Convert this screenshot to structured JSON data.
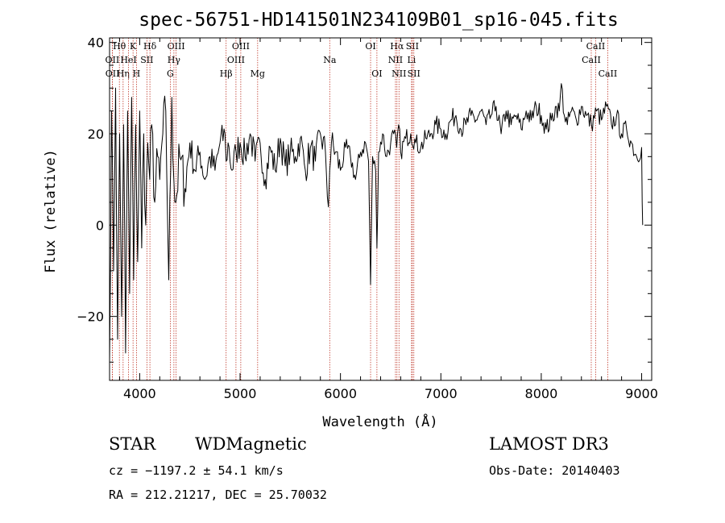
{
  "chart_data": {
    "type": "line",
    "title": "spec-56751-HD141501N234109B01_sp16-045.fits",
    "xlabel": "Wavelength (Å)",
    "ylabel": "Flux (relative)",
    "xlim": [
      3700,
      9100
    ],
    "ylim": [
      -34,
      41
    ],
    "xticks": [
      4000,
      5000,
      6000,
      7000,
      8000,
      9000
    ],
    "xtick_labels": [
      "4000",
      "5000",
      "6000",
      "7000",
      "8000",
      "9000"
    ],
    "yticks": [
      -20,
      0,
      20,
      40
    ],
    "ytick_labels": [
      "−20",
      "0",
      "20",
      "40"
    ],
    "grid": false,
    "series": [
      {
        "name": "flux",
        "x": [
          3700,
          3720,
          3740,
          3760,
          3780,
          3800,
          3820,
          3840,
          3860,
          3880,
          3900,
          3920,
          3940,
          3960,
          3980,
          4000,
          4020,
          4040,
          4060,
          4080,
          4100,
          4120,
          4150,
          4180,
          4200,
          4230,
          4260,
          4290,
          4320,
          4340,
          4360,
          4400,
          4450,
          4500,
          4550,
          4600,
          4650,
          4700,
          4750,
          4800,
          4850,
          4861,
          4880,
          4920,
          4960,
          5000,
          5050,
          5100,
          5150,
          5200,
          5250,
          5300,
          5350,
          5400,
          5450,
          5500,
          5550,
          5600,
          5650,
          5700,
          5750,
          5800,
          5850,
          5880,
          5893,
          5910,
          5950,
          6000,
          6050,
          6100,
          6150,
          6200,
          6250,
          6280,
          6300,
          6320,
          6350,
          6363,
          6380,
          6420,
          6460,
          6500,
          6530,
          6560,
          6580,
          6600,
          6650,
          6700,
          6750,
          6800,
          6850,
          6900,
          6950,
          7000,
          7050,
          7100,
          7150,
          7200,
          7250,
          7300,
          7350,
          7400,
          7450,
          7500,
          7550,
          7600,
          7650,
          7700,
          7750,
          7800,
          7850,
          7900,
          7950,
          8000,
          8050,
          8100,
          8150,
          8180,
          8200,
          8230,
          8260,
          8300,
          8350,
          8400,
          8450,
          8500,
          8550,
          8600,
          8650,
          8700,
          8750,
          8800,
          8850,
          8900,
          8950,
          9000,
          9005,
          9010
        ],
        "y": [
          -30,
          25,
          -10,
          30,
          -25,
          20,
          -20,
          22,
          -28,
          25,
          -15,
          28,
          -12,
          22,
          -8,
          25,
          -5,
          20,
          0,
          18,
          10,
          22,
          5,
          15,
          10,
          20,
          25,
          -12,
          28,
          10,
          5,
          15,
          8,
          18,
          12,
          16,
          10,
          15,
          12,
          18,
          20,
          14,
          18,
          12,
          16,
          18,
          15,
          20,
          14,
          18,
          10,
          17,
          12,
          19,
          13,
          16,
          15,
          19,
          12,
          17,
          14,
          20,
          16,
          4,
          12,
          18,
          16,
          12,
          17,
          15,
          10,
          16,
          18,
          14,
          -13,
          15,
          12,
          -5,
          16,
          20,
          15,
          18,
          20,
          17,
          22,
          16,
          19,
          20,
          18,
          17,
          19,
          20,
          22,
          21,
          20,
          23,
          24,
          21,
          22,
          24,
          23,
          25,
          22,
          24,
          26,
          20,
          25,
          22,
          24,
          21,
          25,
          23,
          26,
          24,
          21,
          23,
          26,
          25,
          31,
          24,
          22,
          25,
          23,
          26,
          24,
          22,
          25,
          23,
          26,
          22,
          24,
          20,
          21,
          18,
          15,
          17,
          5,
          0
        ],
        "color": "#000000"
      }
    ],
    "lines": [
      {
        "label": "Hθ",
        "x": 3798,
        "row": 0
      },
      {
        "label": "OII",
        "x": 3727,
        "row": 1
      },
      {
        "label": "OII",
        "x": 3729,
        "row": 2
      },
      {
        "label": "Hη",
        "x": 3835,
        "row": 2
      },
      {
        "label": "K",
        "x": 3934,
        "row": 0
      },
      {
        "label": "HeI",
        "x": 3889,
        "row": 1
      },
      {
        "label": "H",
        "x": 3968,
        "row": 2
      },
      {
        "label": "Hδ",
        "x": 4102,
        "row": 0
      },
      {
        "label": "SII",
        "x": 4072,
        "row": 1
      },
      {
        "label": "OIII",
        "x": 4363,
        "row": 0
      },
      {
        "label": "Hγ",
        "x": 4341,
        "row": 1
      },
      {
        "label": "G",
        "x": 4305,
        "row": 2
      },
      {
        "label": "OIII",
        "x": 5007,
        "row": 0
      },
      {
        "label": "OIII",
        "x": 4959,
        "row": 1
      },
      {
        "label": "Hβ",
        "x": 4861,
        "row": 2
      },
      {
        "label": "Mg",
        "x": 5175,
        "row": 2
      },
      {
        "label": "Na",
        "x": 5893,
        "row": 1
      },
      {
        "label": "OI",
        "x": 6300,
        "row": 0
      },
      {
        "label": "OI",
        "x": 6363,
        "row": 2
      },
      {
        "label": "Hα",
        "x": 6563,
        "row": 0
      },
      {
        "label": "SII",
        "x": 6716,
        "row": 0
      },
      {
        "label": "NII",
        "x": 6548,
        "row": 1
      },
      {
        "label": "Li",
        "x": 6708,
        "row": 1
      },
      {
        "label": "NII",
        "x": 6583,
        "row": 2
      },
      {
        "label": "SII",
        "x": 6731,
        "row": 2
      },
      {
        "label": "CaII",
        "x": 8542,
        "row": 0
      },
      {
        "label": "CaII",
        "x": 8498,
        "row": 1
      },
      {
        "label": "CaII",
        "x": 8662,
        "row": 2
      }
    ]
  },
  "info": {
    "class": "STAR",
    "subclass": "WDMagnetic",
    "survey": "LAMOST DR3",
    "cz": "cz = −1197.2 ± 54.1 km/s",
    "obs_date": "Obs-Date: 20140403",
    "coords": "RA = 212.21217, DEC =  25.70032"
  }
}
